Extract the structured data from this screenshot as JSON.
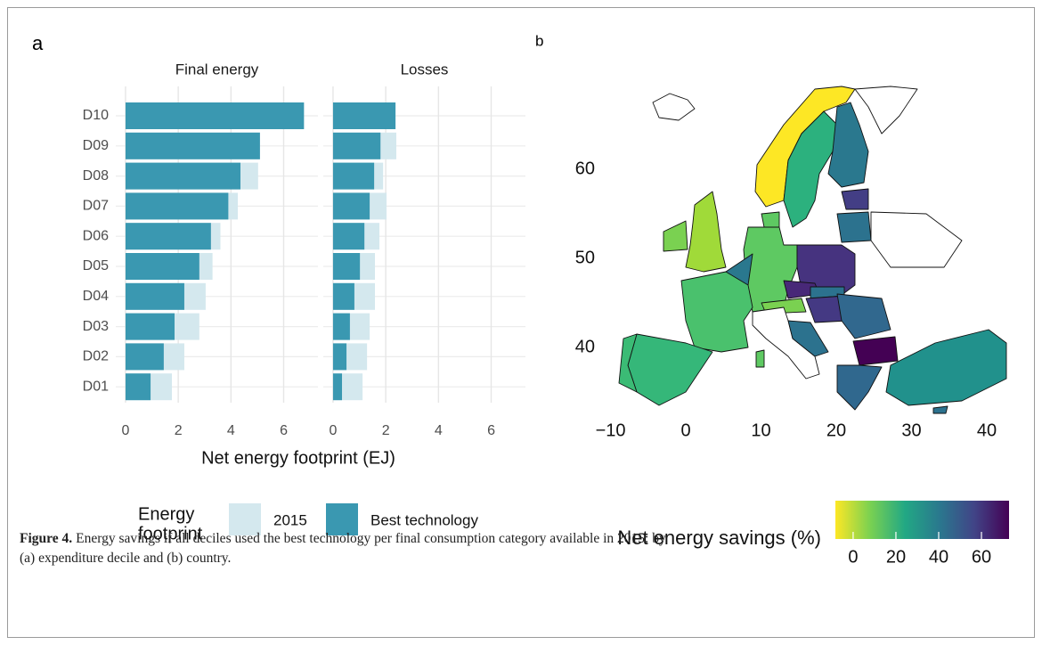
{
  "panel_labels": [
    "a",
    "b"
  ],
  "chart_data": [
    {
      "type": "bar",
      "orientation": "horizontal",
      "facets": [
        "Final energy",
        "Losses"
      ],
      "categories": [
        "D10",
        "D09",
        "D08",
        "D07",
        "D06",
        "D05",
        "D04",
        "D03",
        "D02",
        "D01"
      ],
      "series": [
        {
          "name": "2015",
          "color": "#d4e8ee",
          "values": [
            [
              6.77,
              5.1,
              5.03,
              4.26,
              3.6,
              3.3,
              3.04,
              2.8,
              2.23,
              1.76
            ],
            [
              2.37,
              2.4,
              1.9,
              2.03,
              1.76,
              1.59,
              1.59,
              1.39,
              1.29,
              1.12
            ]
          ]
        },
        {
          "name": "Best technology",
          "color": "#3a98b1",
          "values": [
            [
              6.77,
              5.1,
              4.36,
              3.9,
              3.24,
              2.8,
              2.23,
              1.86,
              1.45,
              0.95
            ],
            [
              2.37,
              1.8,
              1.56,
              1.39,
              1.19,
              1.02,
              0.81,
              0.64,
              0.51,
              0.34
            ]
          ]
        }
      ],
      "xlim": [
        -0.37,
        7.3
      ],
      "xticks": [
        0,
        2,
        4,
        6
      ],
      "xlabel": "Net energy footprint (EJ)",
      "legend_title": [
        "Energy",
        "footprint"
      ],
      "grid": true
    },
    {
      "type": "map",
      "xlim": [
        -10.3,
        42.6
      ],
      "xticks": [
        {
          "value": -10,
          "label": "−10"
        },
        0,
        10,
        20,
        30,
        40
      ],
      "ylim": [
        32.5,
        69.3
      ],
      "yticks": [
        40,
        50,
        60
      ],
      "colorbar": {
        "label": "Net energy savings (%)",
        "lim": [
          -8.3,
          72.9
        ],
        "ticks": [
          0,
          20,
          40,
          60
        ]
      }
    }
  ],
  "caption": {
    "label": "Figure 4.",
    "text": "Energy savings if all deciles used the best technology per final consumption category available in 2015: by (a) expenditure decile and (b) country."
  }
}
